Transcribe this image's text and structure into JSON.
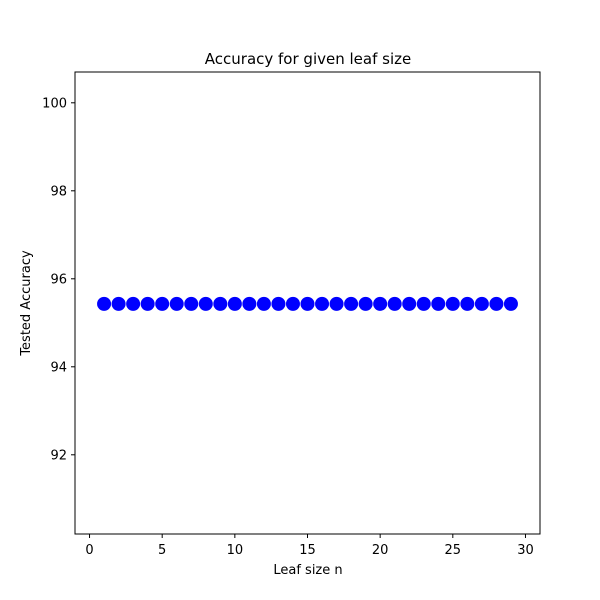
{
  "chart_data": {
    "type": "scatter",
    "title": "Accuracy for given leaf size",
    "xlabel": "Leaf size n",
    "ylabel": "Tested Accuracy",
    "xlim": [
      -1,
      31
    ],
    "ylim": [
      90.2,
      100.7
    ],
    "x_ticks": [
      0,
      5,
      10,
      15,
      20,
      25,
      30
    ],
    "y_ticks": [
      92,
      94,
      96,
      98,
      100
    ],
    "grid": false,
    "marker_color": "#0000ff",
    "series": [
      {
        "x": [
          1,
          2,
          3,
          4,
          5,
          6,
          7,
          8,
          9,
          10,
          11,
          12,
          13,
          14,
          15,
          16,
          17,
          18,
          19,
          20,
          21,
          22,
          23,
          24,
          25,
          26,
          27,
          28,
          29
        ],
        "y": [
          95.43,
          95.43,
          95.43,
          95.43,
          95.43,
          95.43,
          95.43,
          95.43,
          95.43,
          95.43,
          95.43,
          95.43,
          95.43,
          95.43,
          95.43,
          95.43,
          95.43,
          95.43,
          95.43,
          95.43,
          95.43,
          95.43,
          95.43,
          95.43,
          95.43,
          95.43,
          95.43,
          95.43,
          95.43
        ]
      }
    ]
  }
}
